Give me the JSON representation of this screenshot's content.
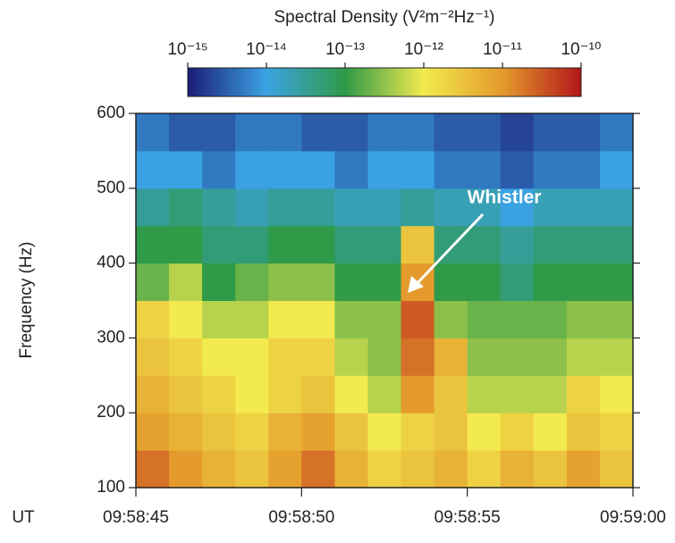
{
  "chart_data": {
    "type": "spectrogram",
    "colorbar_title": "Spectral Density (V²m⁻²Hz⁻¹)",
    "y_label": "Frequency (Hz)",
    "x_label": "UT",
    "annotation": "Whistler",
    "x": [
      "09:58:45",
      "09:58:46",
      "09:58:47",
      "09:58:48",
      "09:58:49",
      "09:58:50",
      "09:58:51",
      "09:58:52",
      "09:58:53",
      "09:58:54",
      "09:58:55",
      "09:58:56",
      "09:58:57",
      "09:58:58",
      "09:58:59"
    ],
    "y": [
      100,
      150,
      200,
      250,
      300,
      350,
      400,
      450,
      500,
      550
    ],
    "values": [
      [
        2e-11,
        1e-11,
        5e-12,
        3e-12,
        8e-12,
        2e-11,
        5e-12,
        2e-12,
        3e-12,
        5e-12,
        2e-12,
        5e-12,
        3e-12,
        8e-12,
        3e-12
      ],
      [
        8e-12,
        5e-12,
        3e-12,
        2e-12,
        5e-12,
        8e-12,
        3e-12,
        1e-12,
        2e-12,
        3e-12,
        1e-12,
        2e-12,
        1e-12,
        3e-12,
        2e-12
      ],
      [
        5e-12,
        3e-12,
        2e-12,
        1e-12,
        2e-12,
        3e-12,
        1e-12,
        5e-13,
        1e-11,
        3e-12,
        5e-13,
        5e-13,
        5e-13,
        2e-12,
        1e-12
      ],
      [
        3e-12,
        2e-12,
        1e-12,
        1e-12,
        2e-12,
        2e-12,
        5e-13,
        3e-13,
        2e-11,
        5e-12,
        3e-13,
        3e-13,
        3e-13,
        5e-13,
        5e-13
      ],
      [
        2e-12,
        1e-12,
        5e-13,
        5e-13,
        1e-12,
        1e-12,
        3e-13,
        3e-13,
        3e-11,
        3e-13,
        2e-13,
        2e-13,
        2e-13,
        3e-13,
        3e-13
      ],
      [
        2e-13,
        5e-13,
        1e-13,
        2e-13,
        3e-13,
        3e-13,
        1e-13,
        1e-13,
        1e-11,
        1e-13,
        1e-13,
        5e-14,
        1e-13,
        1e-13,
        1e-13
      ],
      [
        1e-13,
        1e-13,
        5e-14,
        5e-14,
        1e-13,
        1e-13,
        5e-14,
        5e-14,
        3e-12,
        5e-14,
        5e-14,
        3e-14,
        5e-14,
        5e-14,
        5e-14
      ],
      [
        3e-14,
        5e-14,
        3e-14,
        2e-14,
        3e-14,
        3e-14,
        2e-14,
        2e-14,
        3e-14,
        2e-14,
        2e-14,
        1e-14,
        2e-14,
        2e-14,
        2e-14
      ],
      [
        1e-14,
        1e-14,
        5e-15,
        1e-14,
        1e-14,
        1e-14,
        5e-15,
        1e-14,
        1e-14,
        5e-15,
        5e-15,
        3e-15,
        5e-15,
        5e-15,
        1e-14
      ],
      [
        5e-15,
        3e-15,
        3e-15,
        5e-15,
        5e-15,
        3e-15,
        3e-15,
        5e-15,
        5e-15,
        3e-15,
        3e-15,
        2e-15,
        3e-15,
        3e-15,
        5e-15
      ]
    ],
    "xlim": [
      "09:58:45",
      "09:59:00"
    ],
    "xticks": [
      "09:58:45",
      "09:58:50",
      "09:58:55",
      "09:59:00"
    ],
    "ylim": [
      100,
      600
    ],
    "yticks": [
      100,
      200,
      300,
      400,
      500,
      600
    ],
    "clim": [
      1e-15,
      1e-10
    ],
    "clog": true,
    "cticks": [
      {
        "value": 1e-15,
        "label": "10⁻¹⁵"
      },
      {
        "value": 1e-14,
        "label": "10⁻¹⁴"
      },
      {
        "value": 1e-13,
        "label": "10⁻¹³"
      },
      {
        "value": 1e-12,
        "label": "10⁻¹²"
      },
      {
        "value": 1e-11,
        "label": "10⁻¹¹"
      },
      {
        "value": 1e-10,
        "label": "10⁻¹⁰"
      }
    ],
    "colormap": [
      "#1c1c78",
      "#3aa2e2",
      "#2f9a48",
      "#f2ea4e",
      "#e49a2c",
      "#b3161a"
    ]
  }
}
